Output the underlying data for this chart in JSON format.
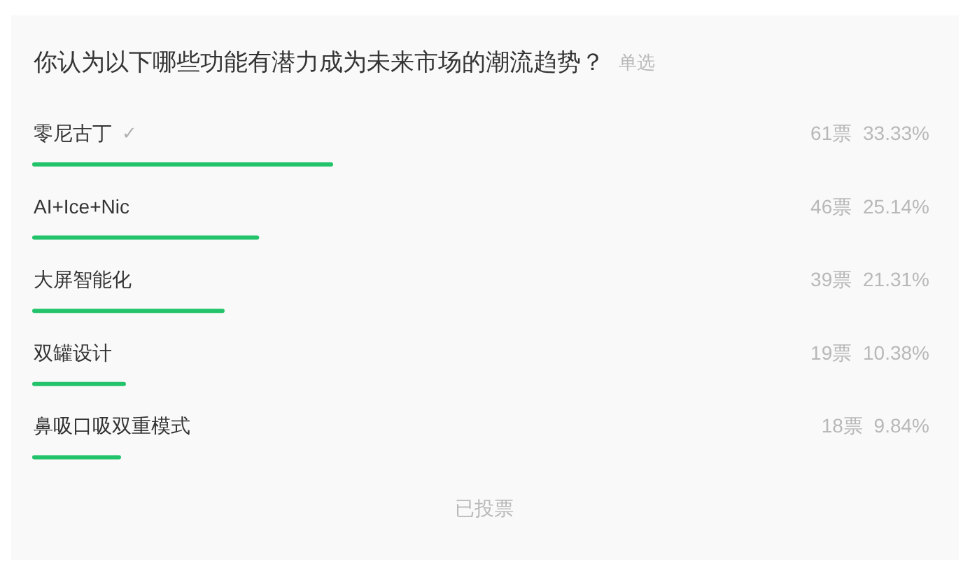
{
  "chart_data": {
    "type": "bar",
    "orientation": "horizontal",
    "title": "你认为以下哪些功能有潜力成为未来市场的潮流趋势？",
    "subtitle": "单选",
    "categories": [
      "零尼古丁",
      "AI+Ice+Nic",
      "大屏智能化",
      "双罐设计",
      "鼻吸口吸双重模式"
    ],
    "values": [
      33.33,
      25.14,
      21.31,
      10.38,
      9.84
    ],
    "value_labels": [
      "61票 33.33%",
      "46票 25.14%",
      "39票 21.31%",
      "19票 10.38%",
      "18票 9.84%"
    ],
    "color": "#22c36a",
    "tick_labels": "y",
    "annotations": [
      {
        "text": "✓",
        "y": "零尼古丁"
      },
      "已投票"
    ]
  }
}
